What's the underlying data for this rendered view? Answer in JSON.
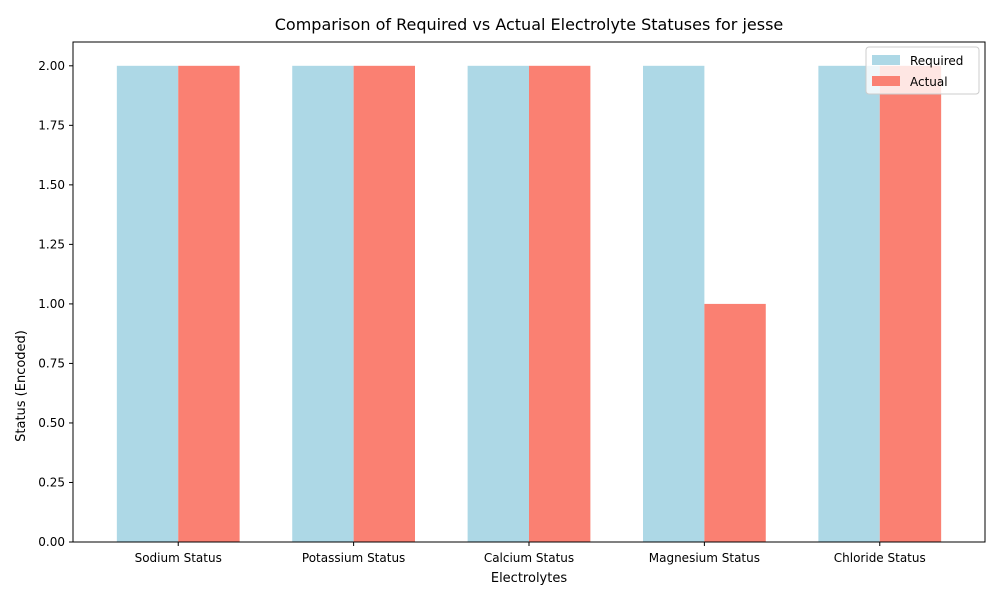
{
  "chart_data": {
    "type": "bar",
    "title": "Comparison of Required vs Actual Electrolyte Statuses for jesse",
    "xlabel": "Electrolytes",
    "ylabel": "Status (Encoded)",
    "categories": [
      "Sodium Status",
      "Potassium Status",
      "Calcium Status",
      "Magnesium Status",
      "Chloride Status"
    ],
    "series": [
      {
        "name": "Required",
        "color": "#add8e6",
        "values": [
          2,
          2,
          2,
          2,
          2
        ]
      },
      {
        "name": "Actual",
        "color": "#fa8072",
        "values": [
          2,
          2,
          2,
          1,
          2
        ]
      }
    ],
    "ylim": [
      0,
      2.1
    ],
    "yticks": [
      "0.00",
      "0.25",
      "0.50",
      "0.75",
      "1.00",
      "1.25",
      "1.50",
      "1.75",
      "2.00"
    ],
    "grid": false,
    "legend_position": "top-right"
  }
}
